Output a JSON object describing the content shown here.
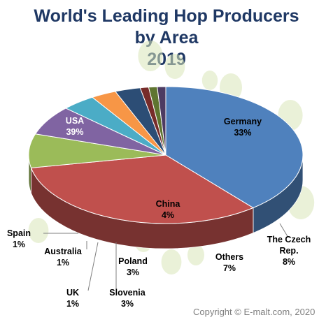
{
  "chart_data": {
    "type": "pie",
    "title": [
      "World's Leading Hop Producers",
      "by Area",
      "2019"
    ],
    "slices": [
      {
        "name": "USA",
        "value": 39,
        "label": "39%",
        "color": "#4f81bd"
      },
      {
        "name": "Germany",
        "value": 33,
        "label": "33%",
        "color": "#c0504d"
      },
      {
        "name": "The Czech Rep.",
        "value": 8,
        "label": "8%",
        "color": "#9bbb59"
      },
      {
        "name": "Others",
        "value": 7,
        "label": "7%",
        "color": "#8064a2"
      },
      {
        "name": "China",
        "value": 4,
        "label": "4%",
        "color": "#4bacc6"
      },
      {
        "name": "Poland",
        "value": 3,
        "label": "3%",
        "color": "#f79646"
      },
      {
        "name": "Slovenia",
        "value": 3,
        "label": "3%",
        "color": "#2c4d75"
      },
      {
        "name": "UK",
        "value": 1,
        "label": "1%",
        "color": "#772c2a"
      },
      {
        "name": "Australia",
        "value": 1,
        "label": "1%",
        "color": "#5f7530"
      },
      {
        "name": "Spain",
        "value": 1,
        "label": "1%",
        "color": "#4d3b62"
      }
    ]
  },
  "copyright": "Copyright © E-malt.com, 2020"
}
